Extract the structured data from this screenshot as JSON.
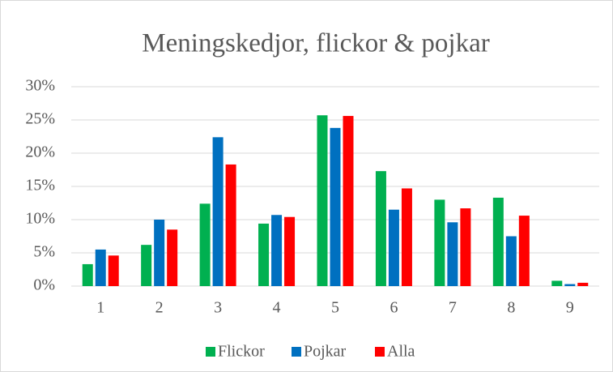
{
  "chart_data": {
    "type": "bar",
    "title": "Meningskedjor, flickor & pojkar",
    "categories": [
      "1",
      "2",
      "3",
      "4",
      "5",
      "6",
      "7",
      "8",
      "9"
    ],
    "series": [
      {
        "name": "Flickor",
        "color": "#00b050",
        "values": [
          3.3,
          6.2,
          12.4,
          9.4,
          25.7,
          17.3,
          13.0,
          13.3,
          0.8
        ]
      },
      {
        "name": "Pojkar",
        "color": "#0070c0",
        "values": [
          5.5,
          10.0,
          22.4,
          10.7,
          23.8,
          11.5,
          9.6,
          7.5,
          0.3
        ]
      },
      {
        "name": "Alla",
        "color": "#ff0000",
        "values": [
          4.6,
          8.5,
          18.3,
          10.4,
          25.6,
          14.7,
          11.7,
          10.6,
          0.5
        ]
      }
    ],
    "ylim": [
      0,
      30
    ],
    "yticks": [
      {
        "value": 0,
        "label": "0%"
      },
      {
        "value": 5,
        "label": "5%"
      },
      {
        "value": 10,
        "label": "10%"
      },
      {
        "value": 15,
        "label": "15%"
      },
      {
        "value": 20,
        "label": "20%"
      },
      {
        "value": 25,
        "label": "25%"
      },
      {
        "value": 30,
        "label": "30%"
      }
    ],
    "grid": true,
    "legend": "bottom"
  }
}
